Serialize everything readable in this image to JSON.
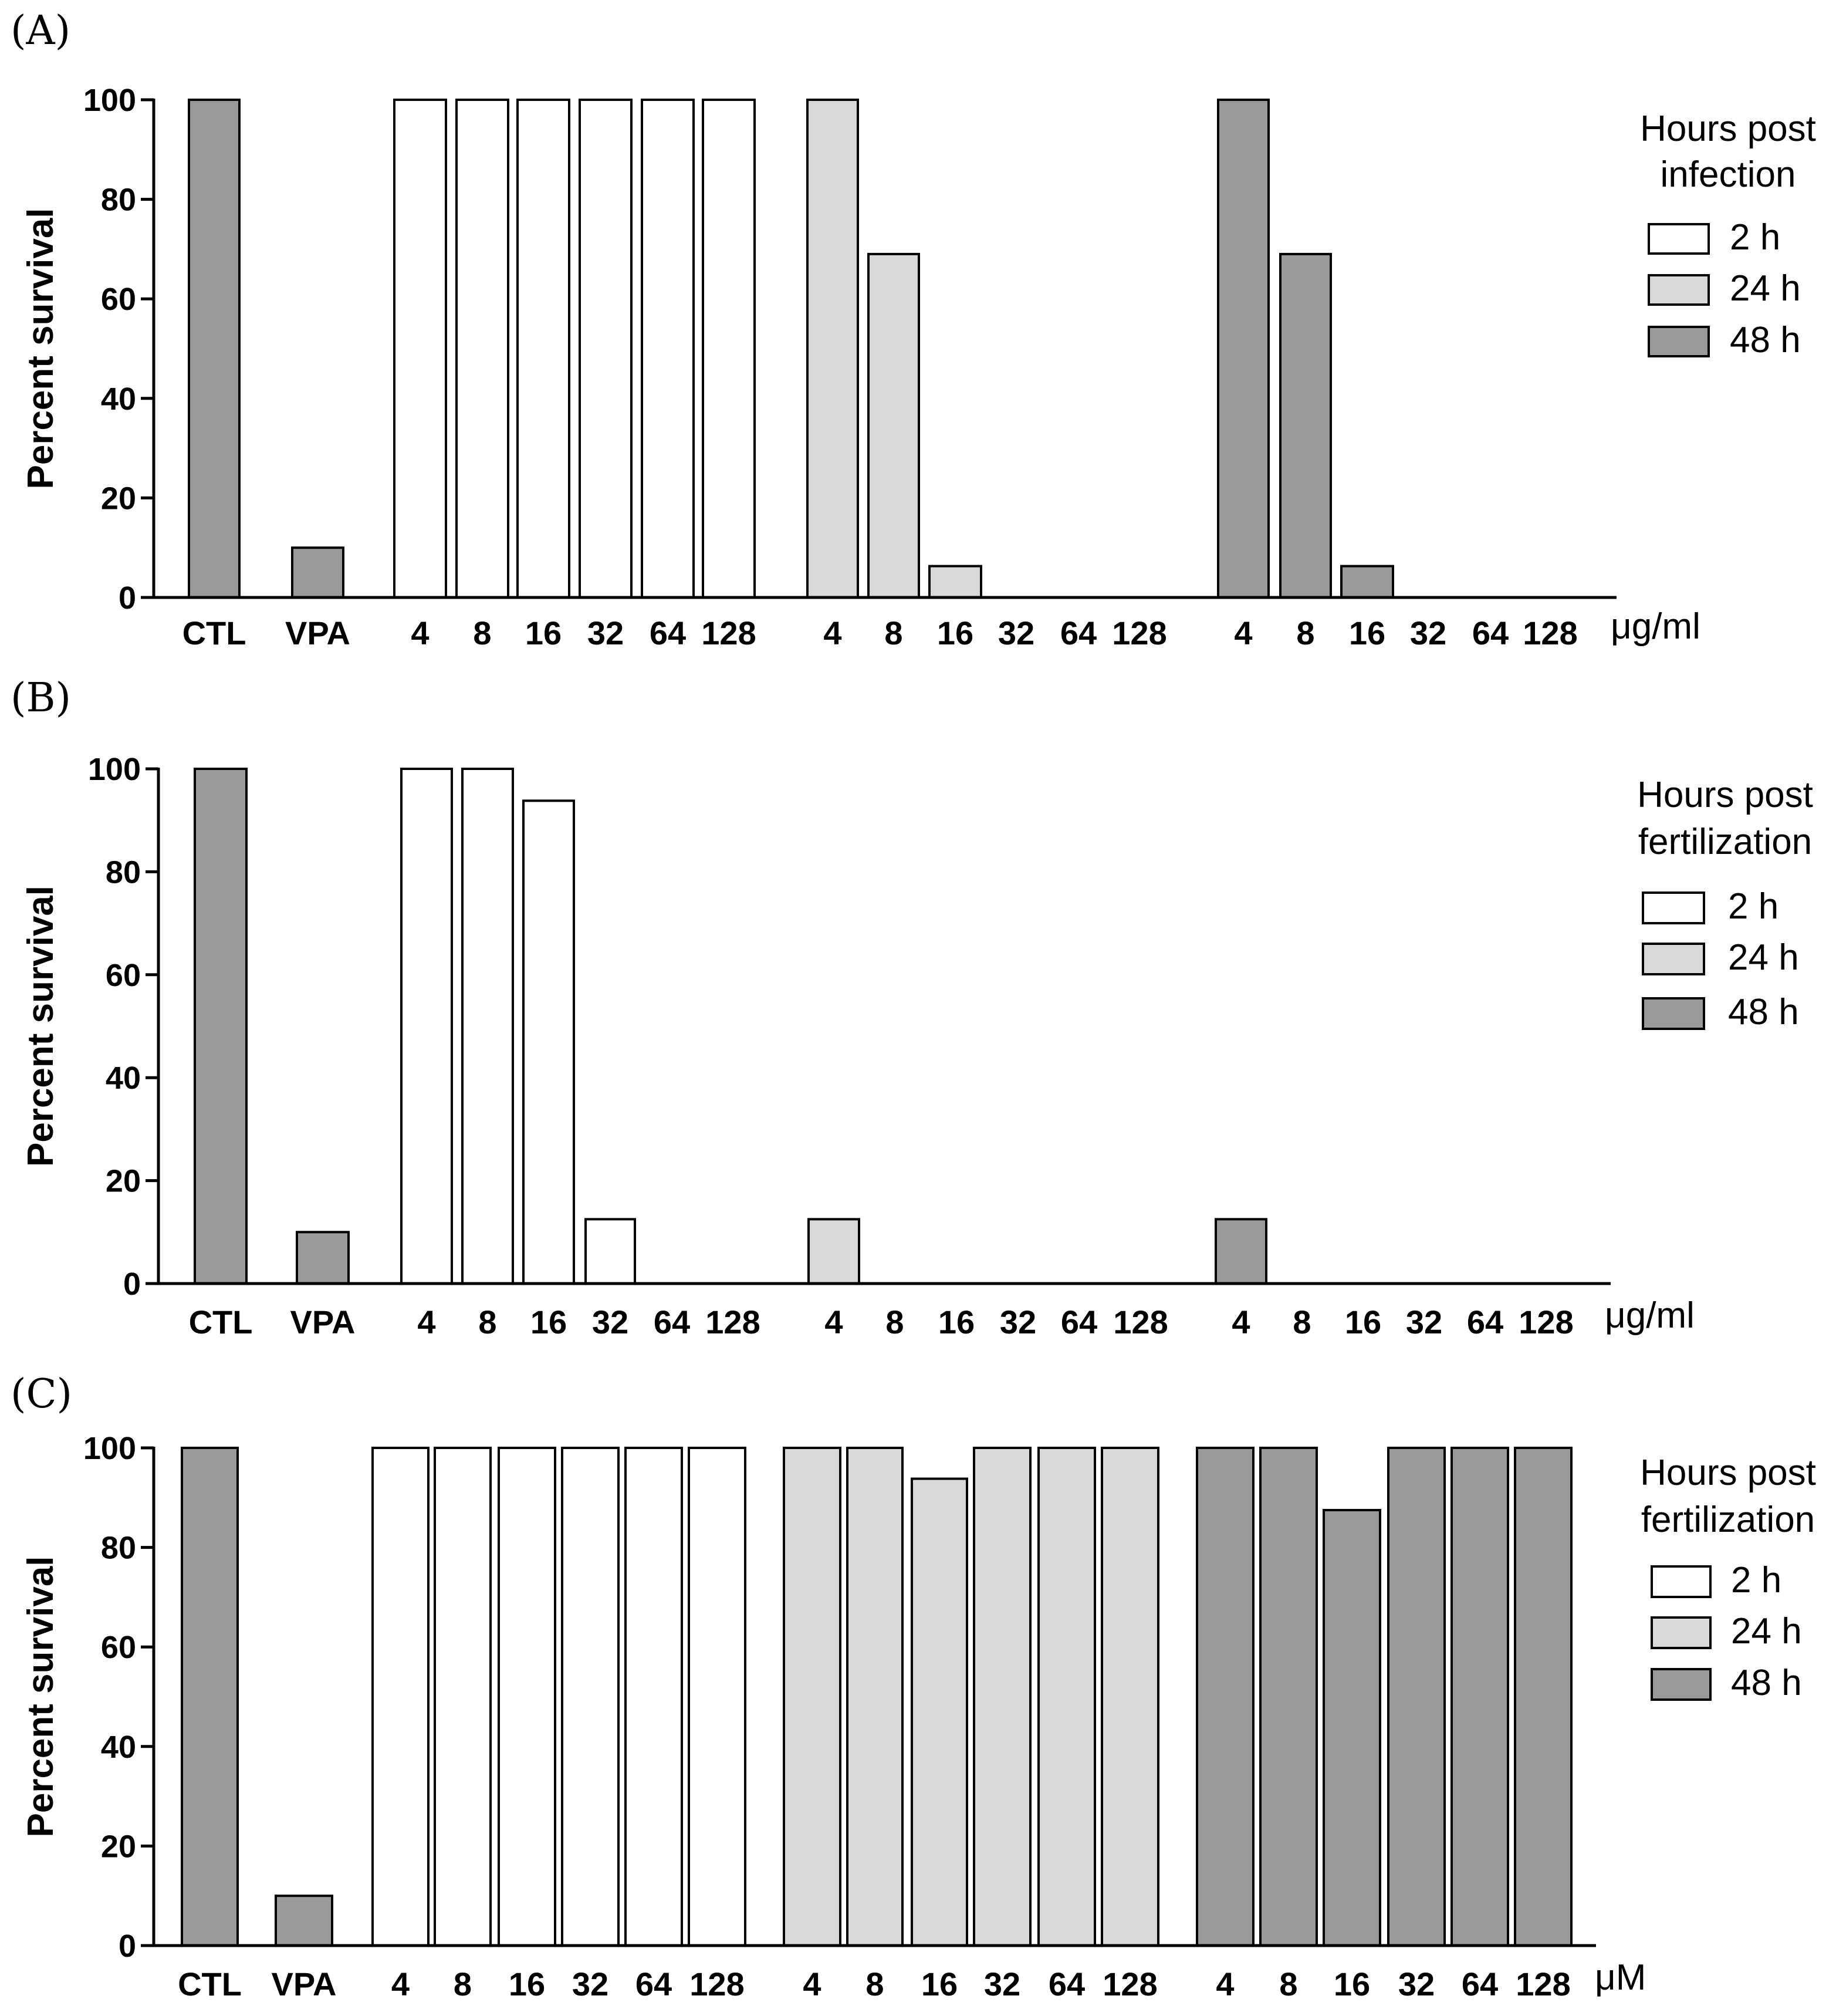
{
  "colors": {
    "h2": "#ffffff",
    "h24": "#d9d9d9",
    "h48": "#9a9a9a",
    "axis": "#000000"
  },
  "chart_data": [
    {
      "type": "bar",
      "panel": "(A)",
      "ylabel": "Percent survival",
      "ylim": [
        0,
        100
      ],
      "yticks": [
        0,
        20,
        40,
        60,
        80,
        100
      ],
      "unit": "μg/ml",
      "legend": {
        "title_line1": "Hours post",
        "title_line2": "infection",
        "items": [
          "2 h",
          "24 h",
          "48 h"
        ]
      },
      "categories": [
        "CTL",
        "VPA",
        "4",
        "8",
        "16",
        "32",
        "64",
        "128",
        "4",
        "8",
        "16",
        "32",
        "64",
        "128",
        "4",
        "8",
        "16",
        "32",
        "64",
        "128"
      ],
      "groups": [
        "control",
        "control",
        "2 h",
        "2 h",
        "2 h",
        "2 h",
        "2 h",
        "2 h",
        "24 h",
        "24 h",
        "24 h",
        "24 h",
        "24 h",
        "24 h",
        "48 h",
        "48 h",
        "48 h",
        "48 h",
        "48 h",
        "48 h"
      ],
      "values": [
        100,
        10,
        100,
        100,
        100,
        100,
        100,
        100,
        100,
        69,
        6.3,
        0,
        0,
        0,
        100,
        69,
        6.3,
        0,
        0,
        0
      ]
    },
    {
      "type": "bar",
      "panel": "(B)",
      "ylabel": "Percent survival",
      "ylim": [
        0,
        100
      ],
      "yticks": [
        0,
        20,
        40,
        60,
        80,
        100
      ],
      "unit": "μg/ml",
      "legend": {
        "title_line1": "Hours post",
        "title_line2": "fertilization",
        "items": [
          "2 h",
          "24 h",
          "48 h"
        ]
      },
      "categories": [
        "CTL",
        "VPA",
        "4",
        "8",
        "16",
        "32",
        "64",
        "128",
        "4",
        "8",
        "16",
        "32",
        "64",
        "128",
        "4",
        "8",
        "16",
        "32",
        "64",
        "128"
      ],
      "groups": [
        "control",
        "control",
        "2 h",
        "2 h",
        "2 h",
        "2 h",
        "2 h",
        "2 h",
        "24 h",
        "24 h",
        "24 h",
        "24 h",
        "24 h",
        "24 h",
        "48 h",
        "48 h",
        "48 h",
        "48 h",
        "48 h",
        "48 h"
      ],
      "values": [
        100,
        10,
        100,
        100,
        93.8,
        12.5,
        0,
        0,
        12.5,
        0,
        0,
        0,
        0,
        0,
        12.5,
        0,
        0,
        0,
        0,
        0
      ]
    },
    {
      "type": "bar",
      "panel": "(C)",
      "ylabel": "Percent survival",
      "ylim": [
        0,
        100
      ],
      "yticks": [
        0,
        20,
        40,
        60,
        80,
        100
      ],
      "unit": "μM",
      "legend": {
        "title_line1": "Hours post",
        "title_line2": "fertilization",
        "items": [
          "2 h",
          "24 h",
          "48 h"
        ]
      },
      "categories": [
        "CTL",
        "VPA",
        "4",
        "8",
        "16",
        "32",
        "64",
        "128",
        "4",
        "8",
        "16",
        "32",
        "64",
        "128",
        "4",
        "8",
        "16",
        "32",
        "64",
        "128"
      ],
      "groups": [
        "control",
        "control",
        "2 h",
        "2 h",
        "2 h",
        "2 h",
        "2 h",
        "2 h",
        "24 h",
        "24 h",
        "24 h",
        "24 h",
        "24 h",
        "24 h",
        "48 h",
        "48 h",
        "48 h",
        "48 h",
        "48 h",
        "48 h"
      ],
      "values": [
        100,
        10,
        100,
        100,
        100,
        100,
        100,
        100,
        100,
        100,
        93.8,
        100,
        100,
        100,
        100,
        100,
        87.5,
        100,
        100,
        100
      ]
    }
  ]
}
